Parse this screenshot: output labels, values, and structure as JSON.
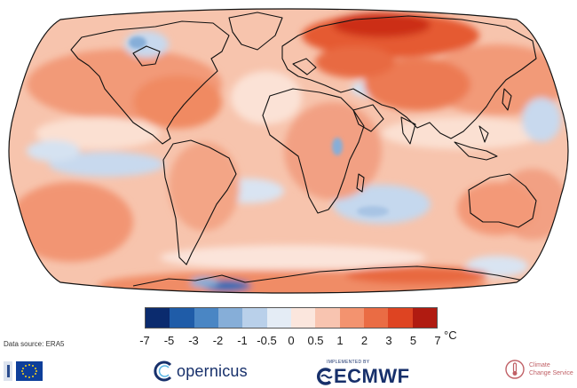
{
  "map": {
    "projection": "robinson",
    "variable": "surface air temperature anomaly",
    "dominant_sign": "warm",
    "hotspot_region": "northern Siberia"
  },
  "legend": {
    "ticks": [
      "-7",
      "-5",
      "-3",
      "-2",
      "-1",
      "-0.5",
      "0",
      "0.5",
      "1",
      "2",
      "3",
      "5",
      "7"
    ],
    "unit": "°C",
    "colors": [
      "#0b2b6e",
      "#1f5ca8",
      "#4a86c4",
      "#86aed8",
      "#b9d0ea",
      "#e4ecf5",
      "#fbe6dd",
      "#f8c4b0",
      "#f3936f",
      "#ea6c44",
      "#de4422",
      "#b01b11"
    ]
  },
  "footer": {
    "source": "Data source: ERA5",
    "copernicus": "opernicus",
    "ecmwf_small": "IMPLEMENTED BY",
    "ecmwf": "ECMWF",
    "c3s_line1": "Climate",
    "c3s_line2": "Change Service"
  },
  "colors": {
    "ocean_base": "#f7cab5",
    "land_warm": "#f08a62",
    "navy": "#17306b"
  }
}
